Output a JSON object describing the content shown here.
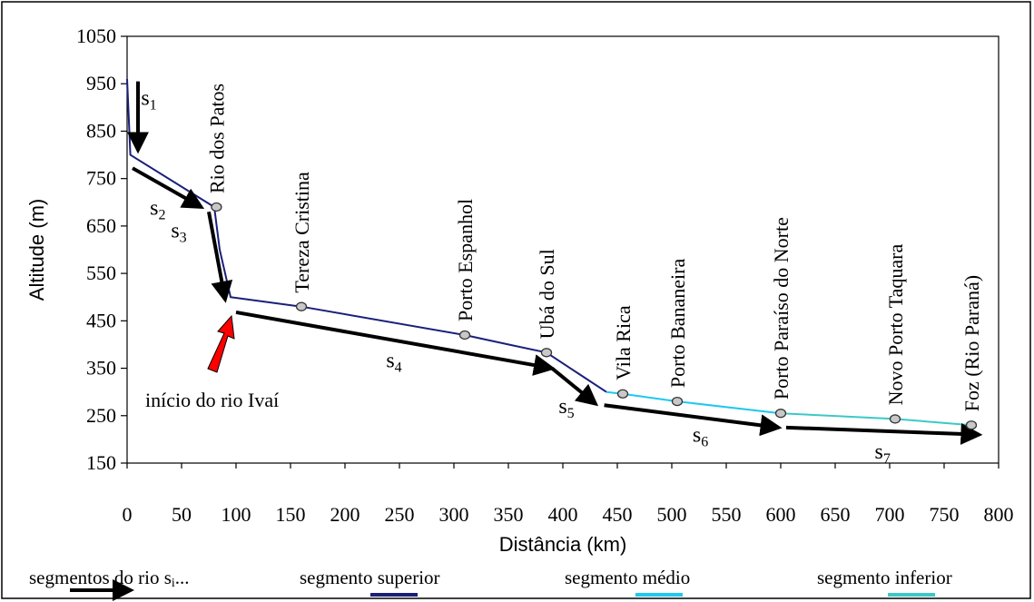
{
  "chart_data": {
    "type": "line",
    "xlabel": "Distância (km)",
    "ylabel": "Altitude (m)",
    "xlim": [
      0,
      800
    ],
    "ylim": [
      150,
      1050
    ],
    "xticks": [
      0,
      50,
      100,
      150,
      200,
      250,
      300,
      350,
      400,
      450,
      500,
      550,
      600,
      650,
      700,
      750,
      800
    ],
    "yticks": [
      150,
      250,
      350,
      450,
      550,
      650,
      750,
      850,
      950,
      1050
    ],
    "grid": false,
    "legend_position": "bottom",
    "series": [
      {
        "name": "segmento superior",
        "color": "#1a1f7a",
        "points": [
          [
            0,
            960
          ],
          [
            3,
            800
          ],
          [
            80,
            690
          ],
          [
            85,
            600
          ],
          [
            95,
            500
          ],
          [
            160,
            480
          ],
          [
            310,
            420
          ],
          [
            350,
            400
          ],
          [
            385,
            383
          ],
          [
            440,
            300
          ]
        ]
      },
      {
        "name": "segmento médio",
        "color": "#1ec8f0",
        "points": [
          [
            440,
            300
          ],
          [
            455,
            296
          ],
          [
            505,
            280
          ],
          [
            600,
            255
          ]
        ]
      },
      {
        "name": "segmento inferior",
        "color": "#3cc8c8",
        "points": [
          [
            600,
            255
          ],
          [
            705,
            243
          ],
          [
            775,
            230
          ]
        ]
      }
    ],
    "places": [
      {
        "label": "Rio dos Patos",
        "x": 82,
        "y": 690
      },
      {
        "label": "Tereza  Cristina",
        "x": 160,
        "y": 480
      },
      {
        "label": "Porto Espanhol",
        "x": 310,
        "y": 420
      },
      {
        "label": "Ubá do Sul",
        "x": 385,
        "y": 383
      },
      {
        "label": "Vila Rica",
        "x": 455,
        "y": 296
      },
      {
        "label": "Porto Bananeira",
        "x": 505,
        "y": 280
      },
      {
        "label": "Porto Paraíso do Norte",
        "x": 600,
        "y": 255
      },
      {
        "label": "Novo Porto Taquara",
        "x": 705,
        "y": 243
      },
      {
        "label": "Foz (Rio Paraná)",
        "x": 775,
        "y": 230
      }
    ],
    "segments": [
      {
        "label": "s",
        "sub": "1",
        "from": [
          10,
          955
        ],
        "to": [
          10,
          810
        ]
      },
      {
        "label": "s",
        "sub": "2",
        "from": [
          5,
          772
        ],
        "to": [
          68,
          690
        ]
      },
      {
        "label": "s",
        "sub": "3",
        "from": [
          75,
          680
        ],
        "to": [
          90,
          495
        ]
      },
      {
        "label": "s",
        "sub": "4",
        "from": [
          100,
          468
        ],
        "to": [
          390,
          350
        ]
      },
      {
        "label": "s",
        "sub": "5",
        "from": [
          390,
          350
        ],
        "to": [
          430,
          275
        ]
      },
      {
        "label": "s",
        "sub": "6",
        "from": [
          438,
          272
        ],
        "to": [
          598,
          225
        ]
      },
      {
        "label": "s",
        "sub": "7",
        "from": [
          605,
          225
        ],
        "to": [
          782,
          210
        ]
      }
    ],
    "annotation": "início do rio Ivaí",
    "legend": [
      {
        "label": "segmentos do rio s",
        "sub": "i",
        "suffix": "...",
        "color": "#000000",
        "kind": "arrow"
      },
      {
        "label": "segmento superior",
        "color": "#1a1f7a",
        "kind": "line"
      },
      {
        "label": "segmento médio",
        "color": "#1ec8f0",
        "kind": "line"
      },
      {
        "label": "segmento inferior",
        "color": "#3cc8c8",
        "kind": "line"
      }
    ]
  }
}
